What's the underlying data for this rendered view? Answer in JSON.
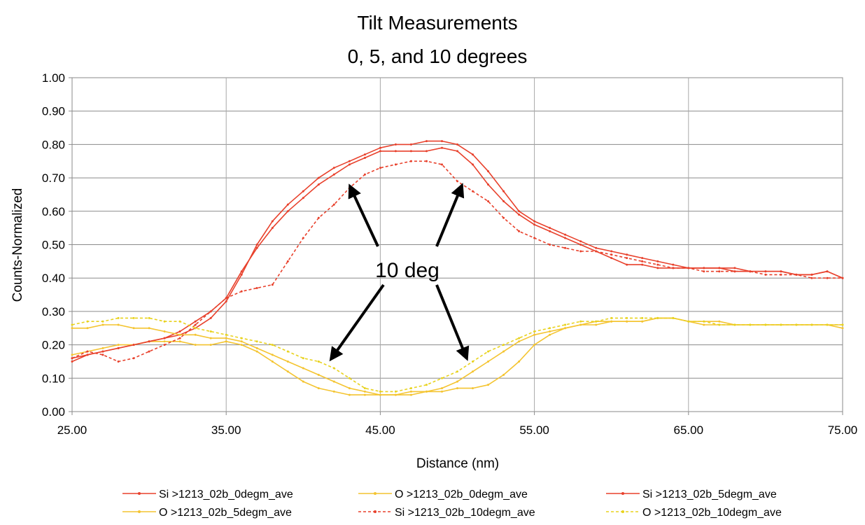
{
  "chart_data": {
    "type": "line",
    "title": "Tilt Measurements",
    "subtitle": "0, 5, and 10 degrees",
    "xlabel": "Distance (nm)",
    "ylabel": "Counts-Normalized",
    "xlim": [
      25,
      75
    ],
    "ylim": [
      0,
      1
    ],
    "x_ticks": [
      "25.00",
      "35.00",
      "45.00",
      "55.00",
      "65.00",
      "75.00"
    ],
    "y_ticks": [
      "0.00",
      "0.10",
      "0.20",
      "0.30",
      "0.40",
      "0.50",
      "0.60",
      "0.70",
      "0.80",
      "0.90",
      "1.00"
    ],
    "grid": true,
    "legend_position": "bottom",
    "annotation": "10 deg",
    "series": [
      {
        "name": "Si >1213_02b_0degm_ave",
        "color": "#e8412c",
        "dash": "solid",
        "x": [
          25,
          26,
          27,
          28,
          29,
          30,
          31,
          32,
          33,
          34,
          35,
          36,
          37,
          38,
          39,
          40,
          41,
          42,
          43,
          44,
          45,
          46,
          47,
          48,
          49,
          50,
          51,
          52,
          53,
          54,
          55,
          56,
          57,
          58,
          59,
          60,
          61,
          62,
          63,
          64,
          65,
          66,
          67,
          68,
          69,
          70,
          71,
          72,
          73,
          74,
          75
        ],
        "values": [
          0.16,
          0.17,
          0.18,
          0.19,
          0.2,
          0.21,
          0.22,
          0.23,
          0.25,
          0.28,
          0.33,
          0.41,
          0.5,
          0.57,
          0.62,
          0.66,
          0.7,
          0.73,
          0.75,
          0.77,
          0.79,
          0.8,
          0.8,
          0.81,
          0.81,
          0.8,
          0.77,
          0.72,
          0.66,
          0.6,
          0.57,
          0.55,
          0.53,
          0.51,
          0.49,
          0.48,
          0.47,
          0.46,
          0.45,
          0.44,
          0.43,
          0.43,
          0.43,
          0.43,
          0.42,
          0.42,
          0.42,
          0.41,
          0.41,
          0.42,
          0.4
        ]
      },
      {
        "name": "O >1213_02b_0degm_ave",
        "color": "#f4c430",
        "dash": "solid",
        "x": [
          25,
          26,
          27,
          28,
          29,
          30,
          31,
          32,
          33,
          34,
          35,
          36,
          37,
          38,
          39,
          40,
          41,
          42,
          43,
          44,
          45,
          46,
          47,
          48,
          49,
          50,
          51,
          52,
          53,
          54,
          55,
          56,
          57,
          58,
          59,
          60,
          61,
          62,
          63,
          64,
          65,
          66,
          67,
          68,
          69,
          70,
          71,
          72,
          73,
          74,
          75
        ],
        "values": [
          0.17,
          0.18,
          0.19,
          0.2,
          0.2,
          0.21,
          0.21,
          0.21,
          0.2,
          0.2,
          0.21,
          0.2,
          0.18,
          0.15,
          0.12,
          0.09,
          0.07,
          0.06,
          0.05,
          0.05,
          0.05,
          0.05,
          0.05,
          0.06,
          0.06,
          0.07,
          0.07,
          0.08,
          0.11,
          0.15,
          0.2,
          0.23,
          0.25,
          0.26,
          0.27,
          0.27,
          0.27,
          0.27,
          0.28,
          0.28,
          0.27,
          0.27,
          0.27,
          0.26,
          0.26,
          0.26,
          0.26,
          0.26,
          0.26,
          0.26,
          0.25
        ]
      },
      {
        "name": "Si >1213_02b_5degm_ave",
        "color": "#e8412c",
        "dash": "solid",
        "x": [
          25,
          26,
          27,
          28,
          29,
          30,
          31,
          32,
          33,
          34,
          35,
          36,
          37,
          38,
          39,
          40,
          41,
          42,
          43,
          44,
          45,
          46,
          47,
          48,
          49,
          50,
          51,
          52,
          53,
          54,
          55,
          56,
          57,
          58,
          59,
          60,
          61,
          62,
          63,
          64,
          65,
          66,
          67,
          68,
          69,
          70,
          71,
          72,
          73,
          74,
          75
        ],
        "values": [
          0.15,
          0.17,
          0.18,
          0.19,
          0.2,
          0.21,
          0.22,
          0.24,
          0.27,
          0.3,
          0.34,
          0.42,
          0.49,
          0.55,
          0.6,
          0.64,
          0.68,
          0.71,
          0.74,
          0.76,
          0.78,
          0.78,
          0.78,
          0.78,
          0.79,
          0.78,
          0.74,
          0.68,
          0.63,
          0.59,
          0.56,
          0.54,
          0.52,
          0.5,
          0.48,
          0.46,
          0.44,
          0.44,
          0.43,
          0.43,
          0.43,
          0.43,
          0.43,
          0.42,
          0.42,
          0.42,
          0.42,
          0.41,
          0.41,
          0.42,
          0.4
        ]
      },
      {
        "name": "O >1213_02b_5degm_ave",
        "color": "#f4c430",
        "dash": "solid",
        "x": [
          25,
          26,
          27,
          28,
          29,
          30,
          31,
          32,
          33,
          34,
          35,
          36,
          37,
          38,
          39,
          40,
          41,
          42,
          43,
          44,
          45,
          46,
          47,
          48,
          49,
          50,
          51,
          52,
          53,
          54,
          55,
          56,
          57,
          58,
          59,
          60,
          61,
          62,
          63,
          64,
          65,
          66,
          67,
          68,
          69,
          70,
          71,
          72,
          73,
          74,
          75
        ],
        "values": [
          0.25,
          0.25,
          0.26,
          0.26,
          0.25,
          0.25,
          0.24,
          0.23,
          0.23,
          0.22,
          0.22,
          0.21,
          0.19,
          0.17,
          0.15,
          0.13,
          0.11,
          0.09,
          0.07,
          0.06,
          0.05,
          0.05,
          0.06,
          0.06,
          0.07,
          0.09,
          0.12,
          0.15,
          0.18,
          0.21,
          0.23,
          0.24,
          0.25,
          0.26,
          0.26,
          0.27,
          0.27,
          0.27,
          0.28,
          0.28,
          0.27,
          0.26,
          0.26,
          0.26,
          0.26,
          0.26,
          0.26,
          0.26,
          0.26,
          0.26,
          0.26
        ]
      },
      {
        "name": "Si >1213_02b_10degm_ave",
        "color": "#e8412c",
        "dash": "dashed",
        "x": [
          25,
          26,
          27,
          28,
          29,
          30,
          31,
          32,
          33,
          34,
          35,
          36,
          37,
          38,
          39,
          40,
          41,
          42,
          43,
          44,
          45,
          46,
          47,
          48,
          49,
          50,
          51,
          52,
          53,
          54,
          55,
          56,
          57,
          58,
          59,
          60,
          61,
          62,
          63,
          64,
          65,
          66,
          67,
          68,
          69,
          70,
          71,
          72,
          73,
          74,
          75
        ],
        "values": [
          0.16,
          0.18,
          0.17,
          0.15,
          0.16,
          0.18,
          0.2,
          0.22,
          0.26,
          0.3,
          0.34,
          0.36,
          0.37,
          0.38,
          0.45,
          0.52,
          0.58,
          0.62,
          0.67,
          0.71,
          0.73,
          0.74,
          0.75,
          0.75,
          0.74,
          0.69,
          0.66,
          0.63,
          0.58,
          0.54,
          0.52,
          0.5,
          0.49,
          0.48,
          0.48,
          0.47,
          0.46,
          0.45,
          0.44,
          0.43,
          0.43,
          0.42,
          0.42,
          0.42,
          0.42,
          0.41,
          0.41,
          0.41,
          0.4,
          0.4,
          0.4
        ]
      },
      {
        "name": "O >1213_02b_10degm_ave",
        "color": "#e8d21d",
        "dash": "dashed",
        "x": [
          25,
          26,
          27,
          28,
          29,
          30,
          31,
          32,
          33,
          34,
          35,
          36,
          37,
          38,
          39,
          40,
          41,
          42,
          43,
          44,
          45,
          46,
          47,
          48,
          49,
          50,
          51,
          52,
          53,
          54,
          55,
          56,
          57,
          58,
          59,
          60,
          61,
          62,
          63,
          64,
          65,
          66,
          67,
          68,
          69,
          70,
          71,
          72,
          73,
          74,
          75
        ],
        "values": [
          0.26,
          0.27,
          0.27,
          0.28,
          0.28,
          0.28,
          0.27,
          0.27,
          0.25,
          0.24,
          0.23,
          0.22,
          0.21,
          0.2,
          0.18,
          0.16,
          0.15,
          0.13,
          0.1,
          0.07,
          0.06,
          0.06,
          0.07,
          0.08,
          0.1,
          0.12,
          0.15,
          0.18,
          0.2,
          0.22,
          0.24,
          0.25,
          0.26,
          0.27,
          0.27,
          0.28,
          0.28,
          0.28,
          0.28,
          0.28,
          0.27,
          0.27,
          0.26,
          0.26,
          0.26,
          0.26,
          0.26,
          0.26,
          0.26,
          0.26,
          0.26
        ]
      }
    ]
  }
}
